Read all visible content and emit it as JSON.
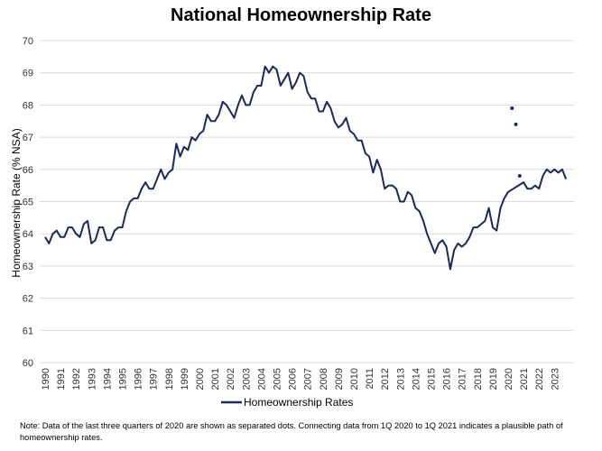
{
  "chart_data": {
    "type": "line",
    "title": "National Homeownership Rate",
    "xlabel": "",
    "ylabel": "Homeownership Rate (% NSA)",
    "ylim": [
      60,
      70
    ],
    "yticks": [
      "60",
      "61",
      "62",
      "63",
      "64",
      "65",
      "66",
      "67",
      "68",
      "69",
      "70"
    ],
    "xticks": [
      "1990",
      "1991",
      "1992",
      "1993",
      "1994",
      "1995",
      "1996",
      "1997",
      "1998",
      "1999",
      "2000",
      "2001",
      "2002",
      "2003",
      "2004",
      "2005",
      "2006",
      "2007",
      "2008",
      "2009",
      "2010",
      "2011",
      "2012",
      "2013",
      "2014",
      "2015",
      "2016",
      "2017",
      "2018",
      "2019",
      "2020",
      "2021",
      "2022",
      "2023"
    ],
    "frequency": "quarterly",
    "grid": true,
    "legend_position": "bottom",
    "line_color": "#1b2a5a",
    "series": [
      {
        "name": "Homeownership Rates",
        "start": "1990Q1",
        "values": [
          63.9,
          63.7,
          64.0,
          64.1,
          63.9,
          63.9,
          64.2,
          64.2,
          64.0,
          63.9,
          64.3,
          64.4,
          63.7,
          63.8,
          64.2,
          64.2,
          63.8,
          63.8,
          64.1,
          64.2,
          64.2,
          64.7,
          65.0,
          65.1,
          65.1,
          65.4,
          65.6,
          65.4,
          65.4,
          65.7,
          66.0,
          65.7,
          65.9,
          66.0,
          66.8,
          66.4,
          66.7,
          66.6,
          67.0,
          66.9,
          67.1,
          67.2,
          67.7,
          67.5,
          67.5,
          67.7,
          68.1,
          68.0,
          67.8,
          67.6,
          68.0,
          68.3,
          68.0,
          68.0,
          68.4,
          68.6,
          68.6,
          69.2,
          69.0,
          69.2,
          69.1,
          68.6,
          68.8,
          69.0,
          68.5,
          68.7,
          69.0,
          68.9,
          68.4,
          68.2,
          68.2,
          67.8,
          67.8,
          68.1,
          67.9,
          67.5,
          67.3,
          67.4,
          67.6,
          67.2,
          67.1,
          66.9,
          66.9,
          66.5,
          66.4,
          65.9,
          66.3,
          66.0,
          65.4,
          65.5,
          65.5,
          65.4,
          65.0,
          65.0,
          65.3,
          65.2,
          64.8,
          64.7,
          64.4,
          64.0,
          63.7,
          63.4,
          63.7,
          63.8,
          63.6,
          62.9,
          63.5,
          63.7,
          63.6,
          63.7,
          63.9,
          64.2,
          64.2,
          64.3,
          64.4,
          64.8,
          64.2,
          64.1,
          64.8,
          65.1,
          65.3,
          null,
          null,
          null,
          65.6,
          65.4,
          65.4,
          65.5,
          65.4,
          65.8,
          66.0,
          65.9,
          66.0,
          65.9,
          66.0,
          65.7
        ]
      },
      {
        "start": "2020Q2",
        "style": "dots",
        "values": [
          67.9,
          67.4,
          65.8
        ]
      }
    ]
  },
  "note": "Note: Data of the last three quarters of 2020 are shown as separated dots. Connecting data from 1Q 2020 to 1Q 2021 indicates a plausible path of homeownership rates."
}
